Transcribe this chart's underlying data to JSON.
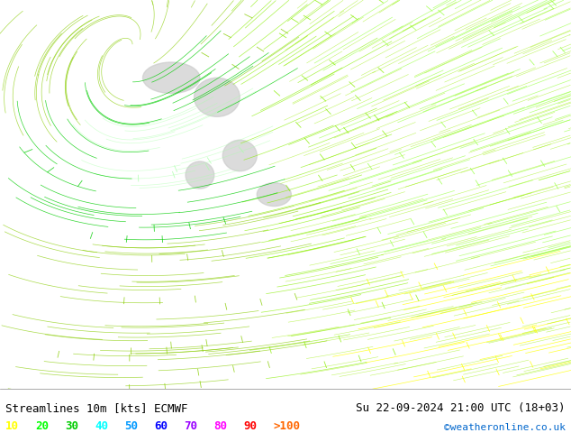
{
  "title_left": "Streamlines 10m [kts] ECMWF",
  "title_right": "Su 22-09-2024 21:00 UTC (18+03)",
  "credit": "©weatheronline.co.uk",
  "legend_values": [
    "10",
    "20",
    "30",
    "40",
    "50",
    "60",
    "70",
    "80",
    "90",
    ">100"
  ],
  "legend_colors": [
    "#ffff00",
    "#00ff00",
    "#00cc00",
    "#00ffff",
    "#0099ff",
    "#0000ff",
    "#9900ff",
    "#ff00ff",
    "#ff0000",
    "#ff6600"
  ],
  "bg_color": "#ffffff",
  "map_bg": "#aaffaa",
  "bottom_bar_color": "#ffffff",
  "fig_width": 6.34,
  "fig_height": 4.9,
  "dpi": 100,
  "title_fontsize": 9,
  "legend_fontsize": 9,
  "credit_fontsize": 8
}
